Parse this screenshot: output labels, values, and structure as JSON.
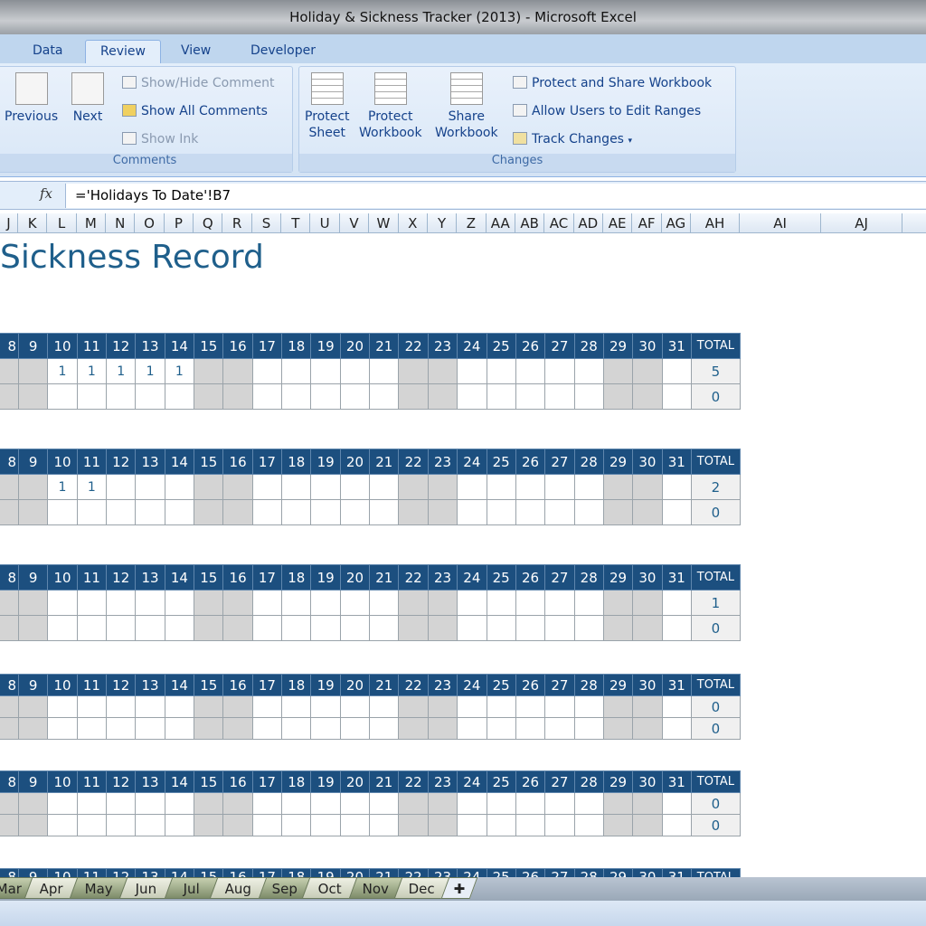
{
  "window": {
    "title": "Holiday & Sickness Tracker (2013) - Microsoft Excel"
  },
  "ribbon_tabs": [
    {
      "label": "Data"
    },
    {
      "label": "Review",
      "active": true
    },
    {
      "label": "View"
    },
    {
      "label": "Developer"
    }
  ],
  "comments_group": {
    "label": "Comments",
    "previous": "Previous",
    "next": "Next",
    "show_hide": "Show/Hide Comment",
    "show_all": "Show All Comments",
    "show_ink": "Show Ink"
  },
  "changes_group": {
    "label": "Changes",
    "protect_sheet": [
      "Protect",
      "Sheet"
    ],
    "protect_workbook": [
      "Protect",
      "Workbook"
    ],
    "share_workbook": [
      "Share",
      "Workbook"
    ],
    "protect_share": "Protect and Share Workbook",
    "allow_users": "Allow Users to Edit Ranges",
    "track_changes": "Track Changes"
  },
  "formula_bar": {
    "fx": "fx",
    "value": "='Holidays To Date'!B7"
  },
  "column_headers": [
    "J",
    "K",
    "L",
    "M",
    "N",
    "O",
    "P",
    "Q",
    "R",
    "S",
    "T",
    "U",
    "V",
    "W",
    "X",
    "Y",
    "Z",
    "AA",
    "AB",
    "AC",
    "AD",
    "AE",
    "AF",
    "AG",
    "AH",
    "AI",
    "AJ"
  ],
  "sheet": {
    "title": "Sickness Record",
    "days": [
      "8",
      "9",
      "10",
      "11",
      "12",
      "13",
      "14",
      "15",
      "16",
      "17",
      "18",
      "19",
      "20",
      "21",
      "22",
      "23",
      "24",
      "25",
      "26",
      "27",
      "28",
      "29",
      "30",
      "31"
    ],
    "total_label": "TOTAL",
    "weekend_days": [
      "8",
      "9",
      "15",
      "16",
      "22",
      "23",
      "29",
      "30"
    ],
    "tables": [
      {
        "rows": [
          {
            "values": {
              "10": "1",
              "11": "1",
              "12": "1",
              "13": "1",
              "14": "1"
            },
            "total": "5"
          },
          {
            "values": {},
            "total": "0"
          }
        ]
      },
      {
        "rows": [
          {
            "values": {
              "10": "1",
              "11": "1"
            },
            "total": "2"
          },
          {
            "values": {},
            "total": "0"
          }
        ]
      },
      {
        "rows": [
          {
            "values": {},
            "total": "1"
          },
          {
            "values": {},
            "total": "0"
          }
        ]
      },
      {
        "rows": [
          {
            "values": {},
            "total": "0"
          },
          {
            "values": {},
            "total": "0"
          }
        ]
      },
      {
        "rows": [
          {
            "values": {},
            "total": "0"
          },
          {
            "values": {},
            "total": "0"
          }
        ]
      },
      {
        "rows": []
      }
    ]
  },
  "sheet_tabs": [
    "Mar",
    "Apr",
    "May",
    "Jun",
    "Jul",
    "Aug",
    "Sep",
    "Oct",
    "Nov",
    "Dec"
  ],
  "colors": {
    "header_blue": "#1c4f7f",
    "title_blue": "#1f5f8b",
    "weekend_grey": "#d4d4d4"
  }
}
